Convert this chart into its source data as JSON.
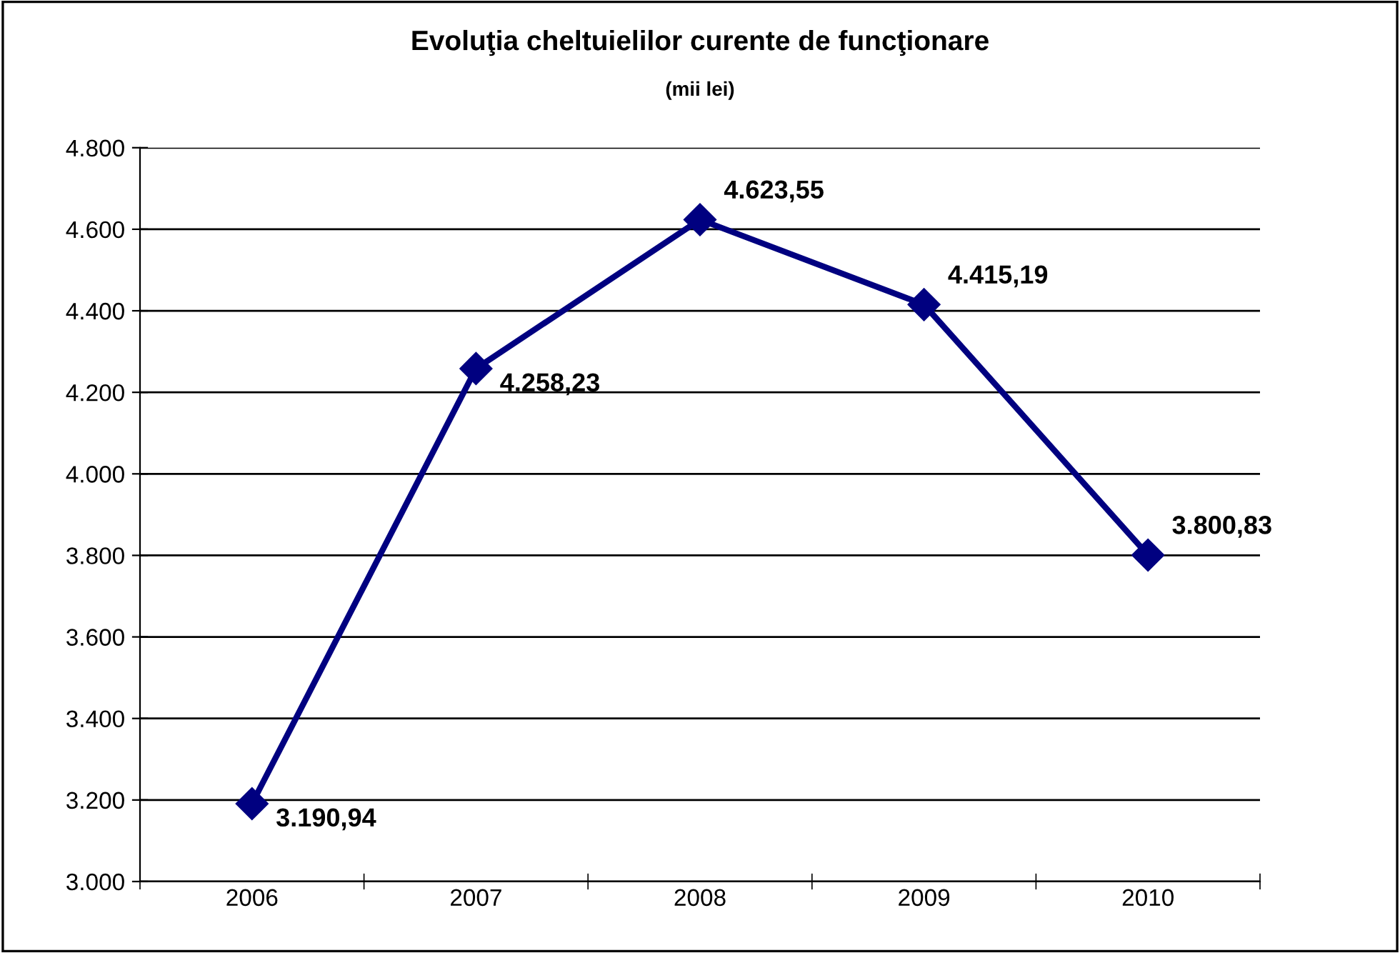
{
  "chart_data": {
    "type": "line",
    "title": "Evoluţia cheltuielilor curente de funcţionare",
    "subtitle": "(mii lei)",
    "categories": [
      "2006",
      "2007",
      "2008",
      "2009",
      "2010"
    ],
    "series": [
      {
        "color": "#000080",
        "values": [
          3190.94,
          4258.23,
          4623.55,
          4415.19,
          3800.83
        ],
        "value_labels": [
          "3.190,94",
          "4.258,23",
          "4.623,55",
          "4.415,19",
          "3.800,83"
        ]
      }
    ],
    "ylim": [
      3000,
      4800
    ],
    "yticks": [
      {
        "value": 3000,
        "label": "3.000"
      },
      {
        "value": 3200,
        "label": "3.200"
      },
      {
        "value": 3400,
        "label": "3.400"
      },
      {
        "value": 3600,
        "label": "3.600"
      },
      {
        "value": 3800,
        "label": "3.800"
      },
      {
        "value": 4000,
        "label": "4.000"
      },
      {
        "value": 4200,
        "label": "4.200"
      },
      {
        "value": 4400,
        "label": "4.400"
      },
      {
        "value": 4600,
        "label": "4.600"
      },
      {
        "value": 4800,
        "label": "4.800"
      }
    ],
    "grid": "y",
    "legend": false,
    "marker": "diamond",
    "line_style": "solid"
  }
}
